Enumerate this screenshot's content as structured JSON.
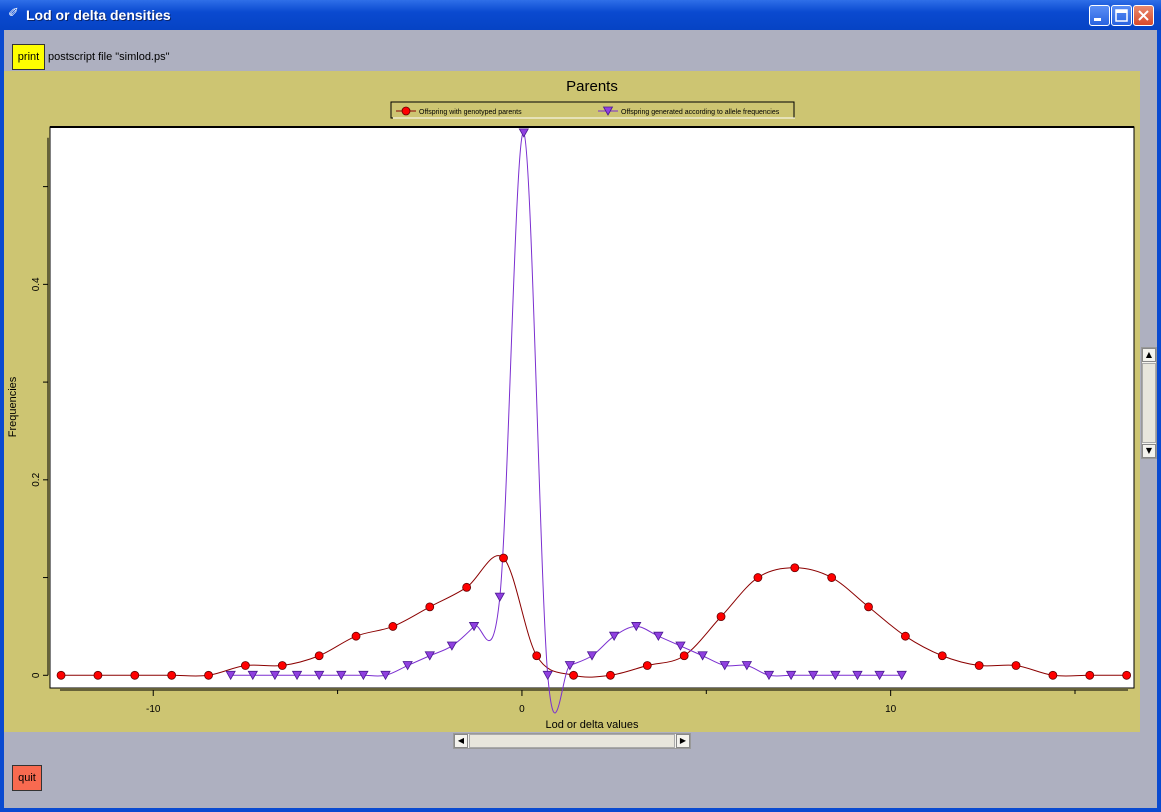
{
  "window": {
    "title": "Lod or delta densities"
  },
  "toolbar": {
    "print_label": "print",
    "file_text": "postscript file \"simlod.ps\""
  },
  "footer": {
    "quit_label": "quit"
  },
  "chart_data": {
    "type": "line",
    "title": "Parents",
    "xlabel": "Lod or delta values",
    "ylabel": "Frequencies",
    "xlim": [
      -12.8,
      16.6
    ],
    "ylim": [
      -0.013,
      0.561
    ],
    "x_ticks": [
      -10,
      0,
      10
    ],
    "x_tick_labels": [
      "-10",
      "0",
      "10"
    ],
    "y_ticks": [
      0,
      0.2,
      0.4
    ],
    "y_tick_labels": [
      "0",
      "0.2",
      "0.4"
    ],
    "legend_position": "top-center",
    "grid": false,
    "series": [
      {
        "name": "Offspring with genotyped parents",
        "color": "#8b0000",
        "marker_color": "#ff0000",
        "marker": "circle",
        "x": [
          -12.5,
          -11.5,
          -10.5,
          -9.5,
          -8.5,
          -7.5,
          -6.5,
          -5.5,
          -4.5,
          -3.5,
          -2.5,
          -1.5,
          -0.5,
          0.4,
          1.4,
          2.4,
          3.4,
          4.4,
          5.4,
          6.4,
          7.4,
          8.4,
          9.4,
          10.4,
          11.4,
          12.4,
          13.4,
          14.4,
          15.4,
          16.4
        ],
        "y": [
          0,
          0,
          0,
          0,
          0,
          0.01,
          0.01,
          0.02,
          0.04,
          0.05,
          0.07,
          0.09,
          0.12,
          0.02,
          0,
          0,
          0.01,
          0.02,
          0.06,
          0.1,
          0.11,
          0.1,
          0.07,
          0.04,
          0.02,
          0.01,
          0.01,
          0,
          0,
          0
        ]
      },
      {
        "name": "Offspring generated according to allele frequencies",
        "color": "#7b2fd0",
        "marker_color": "#9040e0",
        "marker": "triangle-down",
        "x": [
          -7.9,
          -7.3,
          -6.7,
          -6.1,
          -5.5,
          -4.9,
          -4.3,
          -3.7,
          -3.1,
          -2.5,
          -1.9,
          -1.3,
          -0.6,
          0.05,
          0.7,
          1.3,
          1.9,
          2.5,
          3.1,
          3.7,
          4.3,
          4.9,
          5.5,
          6.1,
          6.7,
          7.3,
          7.9,
          8.5,
          9.1,
          9.7,
          10.3
        ],
        "y": [
          0,
          0,
          0,
          0,
          0,
          0,
          0,
          0,
          0.01,
          0.02,
          0.03,
          0.05,
          0.08,
          0.555,
          0,
          0.01,
          0.02,
          0.04,
          0.05,
          0.04,
          0.03,
          0.02,
          0.01,
          0.01,
          0,
          0,
          0,
          0,
          0,
          0,
          0
        ]
      }
    ]
  }
}
